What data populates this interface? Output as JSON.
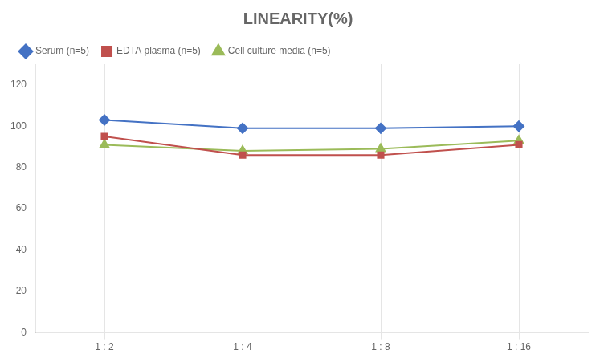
{
  "chart_data": {
    "type": "line",
    "title": "LINEARITY(%)",
    "categories": [
      "1 : 2",
      "1 : 4",
      "1 : 8",
      "1 : 16"
    ],
    "series": [
      {
        "name": "Serum (n=5)",
        "color": "#4472C4",
        "marker": "diamond",
        "values": [
          103,
          99,
          99,
          100
        ]
      },
      {
        "name": "EDTA plasma (n=5)",
        "color": "#C0504D",
        "marker": "square",
        "values": [
          95,
          86,
          86,
          91
        ]
      },
      {
        "name": "Cell culture media (n=5)",
        "color": "#9BBB59",
        "marker": "triangle",
        "values": [
          91,
          88,
          89,
          93
        ]
      }
    ],
    "ylim": [
      0,
      130
    ],
    "yticks": [
      0,
      20,
      40,
      60,
      80,
      100,
      120
    ],
    "grid": "x",
    "legend": "top"
  }
}
